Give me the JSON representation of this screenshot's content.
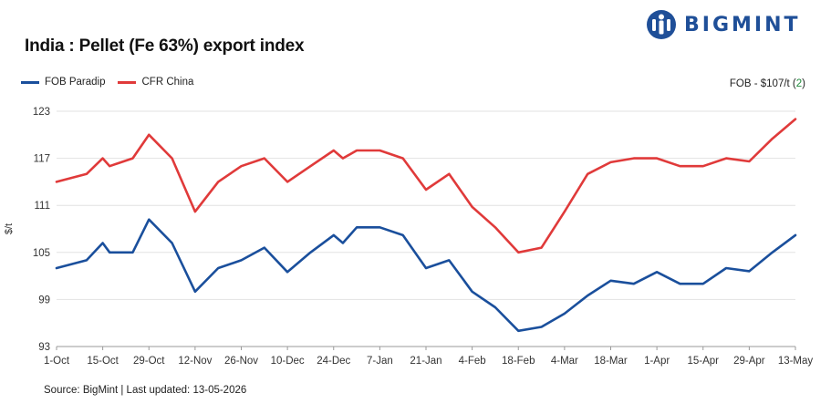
{
  "brand": {
    "name": "BIGMINT",
    "color": "#1f4f98"
  },
  "title": "India : Pellet (Fe 63%) export index",
  "fob_note": {
    "prefix": "FOB - $107/t (",
    "change": "2",
    "suffix": ")",
    "change_color": "#1e8a3a"
  },
  "source": "Source: BigMint | Last updated: 13-05-2026",
  "chart_data": {
    "type": "line",
    "title": "India : Pellet (Fe 63%) export index",
    "ylabel": "$/t",
    "xlabel": "",
    "ylim": [
      93,
      123
    ],
    "yticks": [
      93,
      99,
      105,
      111,
      117,
      123
    ],
    "x_tick_labels": [
      "1-Oct",
      "15-Oct",
      "29-Oct",
      "12-Nov",
      "26-Nov",
      "10-Dec",
      "24-Dec",
      "7-Jan",
      "21-Jan",
      "4-Feb",
      "18-Feb",
      "4-Mar",
      "18-Mar",
      "1-Apr",
      "15-Apr",
      "29-Apr",
      "13-May"
    ],
    "x_tick_index": [
      0,
      2,
      4,
      6,
      8,
      10,
      12,
      14,
      16,
      18,
      20,
      22,
      24,
      26,
      28,
      30,
      32
    ],
    "grid": true,
    "legend": "top-left",
    "series": [
      {
        "name": "FOB Paradip",
        "color": "#1a4f9c",
        "points": [
          [
            0,
            103
          ],
          [
            1.3,
            104
          ],
          [
            2.0,
            106.2
          ],
          [
            2.3,
            105
          ],
          [
            3.3,
            105
          ],
          [
            4.0,
            109.2
          ],
          [
            5.0,
            106.2
          ],
          [
            6.0,
            100
          ],
          [
            7.0,
            103
          ],
          [
            8.0,
            104
          ],
          [
            9.0,
            105.6
          ],
          [
            10.0,
            102.5
          ],
          [
            11.0,
            105
          ],
          [
            12.0,
            107.2
          ],
          [
            12.4,
            106.2
          ],
          [
            13.0,
            108.2
          ],
          [
            14.0,
            108.2
          ],
          [
            15.0,
            107.2
          ],
          [
            16.0,
            103
          ],
          [
            17.0,
            104
          ],
          [
            18.0,
            100
          ],
          [
            19.0,
            98
          ],
          [
            20.0,
            95
          ],
          [
            21.0,
            95.5
          ],
          [
            22.0,
            97.2
          ],
          [
            23.0,
            99.5
          ],
          [
            24.0,
            101.4
          ],
          [
            25.0,
            101
          ],
          [
            26.0,
            102.5
          ],
          [
            27.0,
            101
          ],
          [
            28.0,
            101
          ],
          [
            29.0,
            103
          ],
          [
            30.0,
            102.6
          ],
          [
            31.0,
            105
          ],
          [
            32.0,
            107.2
          ]
        ]
      },
      {
        "name": "CFR China",
        "color": "#e03a3a",
        "points": [
          [
            0,
            114
          ],
          [
            1.3,
            115
          ],
          [
            2.0,
            117
          ],
          [
            2.3,
            116
          ],
          [
            3.3,
            117
          ],
          [
            4.0,
            120
          ],
          [
            5.0,
            117
          ],
          [
            6.0,
            110.2
          ],
          [
            7.0,
            114
          ],
          [
            8.0,
            116
          ],
          [
            9.0,
            117
          ],
          [
            10.0,
            114
          ],
          [
            11.0,
            116
          ],
          [
            12.0,
            118
          ],
          [
            12.4,
            117
          ],
          [
            13.0,
            118
          ],
          [
            14.0,
            118
          ],
          [
            15.0,
            117
          ],
          [
            16.0,
            113
          ],
          [
            17.0,
            115
          ],
          [
            18.0,
            110.8
          ],
          [
            19.0,
            108.2
          ],
          [
            20.0,
            105
          ],
          [
            21.0,
            105.6
          ],
          [
            22.0,
            110.2
          ],
          [
            23.0,
            115
          ],
          [
            24.0,
            116.5
          ],
          [
            25.0,
            117
          ],
          [
            26.0,
            117
          ],
          [
            27.0,
            116
          ],
          [
            28.0,
            116
          ],
          [
            29.0,
            117
          ],
          [
            30.0,
            116.6
          ],
          [
            31.0,
            119.5
          ],
          [
            32.0,
            122
          ]
        ]
      }
    ]
  }
}
